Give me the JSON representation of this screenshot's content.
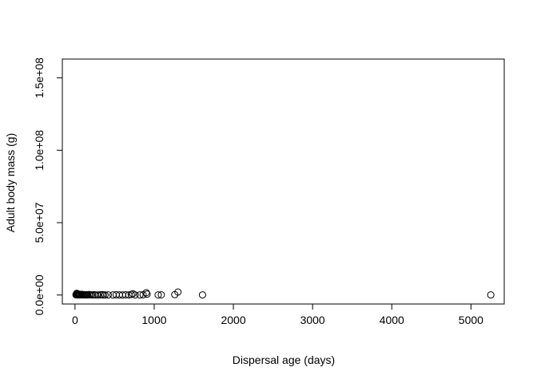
{
  "chart_data": {
    "type": "scatter",
    "title": "",
    "xlabel": "Dispersal age (days)",
    "ylabel": "Adult body mass (g)",
    "xlim": [
      -160,
      5420
    ],
    "ylim": [
      -6200000,
      163000000
    ],
    "x_ticks": [
      0,
      1000,
      2000,
      3000,
      4000,
      5000
    ],
    "x_tick_labels": [
      "0",
      "1000",
      "2000",
      "3000",
      "4000",
      "5000"
    ],
    "y_ticks": [
      0,
      50000000,
      100000000,
      150000000
    ],
    "y_tick_labels": [
      "0.0e+00",
      "5.0e+07",
      "1.0e+08",
      "1.5e+08"
    ],
    "grid": false,
    "legend": "none",
    "point_style": "open-circle",
    "points": [
      {
        "x": 12,
        "y": 200000
      },
      {
        "x": 18,
        "y": 500000
      },
      {
        "x": 22,
        "y": 1200000
      },
      {
        "x": 25,
        "y": 100000
      },
      {
        "x": 28,
        "y": 800000
      },
      {
        "x": 30,
        "y": 300000
      },
      {
        "x": 35,
        "y": 50000
      },
      {
        "x": 40,
        "y": 400000
      },
      {
        "x": 45,
        "y": 150000
      },
      {
        "x": 50,
        "y": 600000
      },
      {
        "x": 55,
        "y": 250000
      },
      {
        "x": 60,
        "y": 80000
      },
      {
        "x": 70,
        "y": 350000
      },
      {
        "x": 80,
        "y": 120000
      },
      {
        "x": 90,
        "y": 450000
      },
      {
        "x": 100,
        "y": 200000
      },
      {
        "x": 110,
        "y": 60000
      },
      {
        "x": 120,
        "y": 300000
      },
      {
        "x": 130,
        "y": 150000
      },
      {
        "x": 140,
        "y": 100000
      },
      {
        "x": 150,
        "y": 250000
      },
      {
        "x": 160,
        "y": 50000
      },
      {
        "x": 180,
        "y": 350000
      },
      {
        "x": 200,
        "y": 120000
      },
      {
        "x": 220,
        "y": 80000
      },
      {
        "x": 240,
        "y": 200000
      },
      {
        "x": 260,
        "y": 100000
      },
      {
        "x": 290,
        "y": 50000
      },
      {
        "x": 320,
        "y": 150000
      },
      {
        "x": 340,
        "y": 300000
      },
      {
        "x": 360,
        "y": 80000
      },
      {
        "x": 380,
        "y": 40000
      },
      {
        "x": 420,
        "y": 100000
      },
      {
        "x": 480,
        "y": 50000
      },
      {
        "x": 520,
        "y": 200000
      },
      {
        "x": 560,
        "y": 100000
      },
      {
        "x": 600,
        "y": 60000
      },
      {
        "x": 640,
        "y": 150000
      },
      {
        "x": 680,
        "y": 80000
      },
      {
        "x": 710,
        "y": 400000
      },
      {
        "x": 730,
        "y": 900000
      },
      {
        "x": 760,
        "y": 100000
      },
      {
        "x": 820,
        "y": 60000
      },
      {
        "x": 860,
        "y": 200000
      },
      {
        "x": 900,
        "y": 1600000
      },
      {
        "x": 910,
        "y": 600000
      },
      {
        "x": 1050,
        "y": 80000
      },
      {
        "x": 1090,
        "y": 150000
      },
      {
        "x": 1260,
        "y": 300000
      },
      {
        "x": 1300,
        "y": 2100000
      },
      {
        "x": 1610,
        "y": 100000
      },
      {
        "x": 5250,
        "y": 100000
      }
    ]
  }
}
